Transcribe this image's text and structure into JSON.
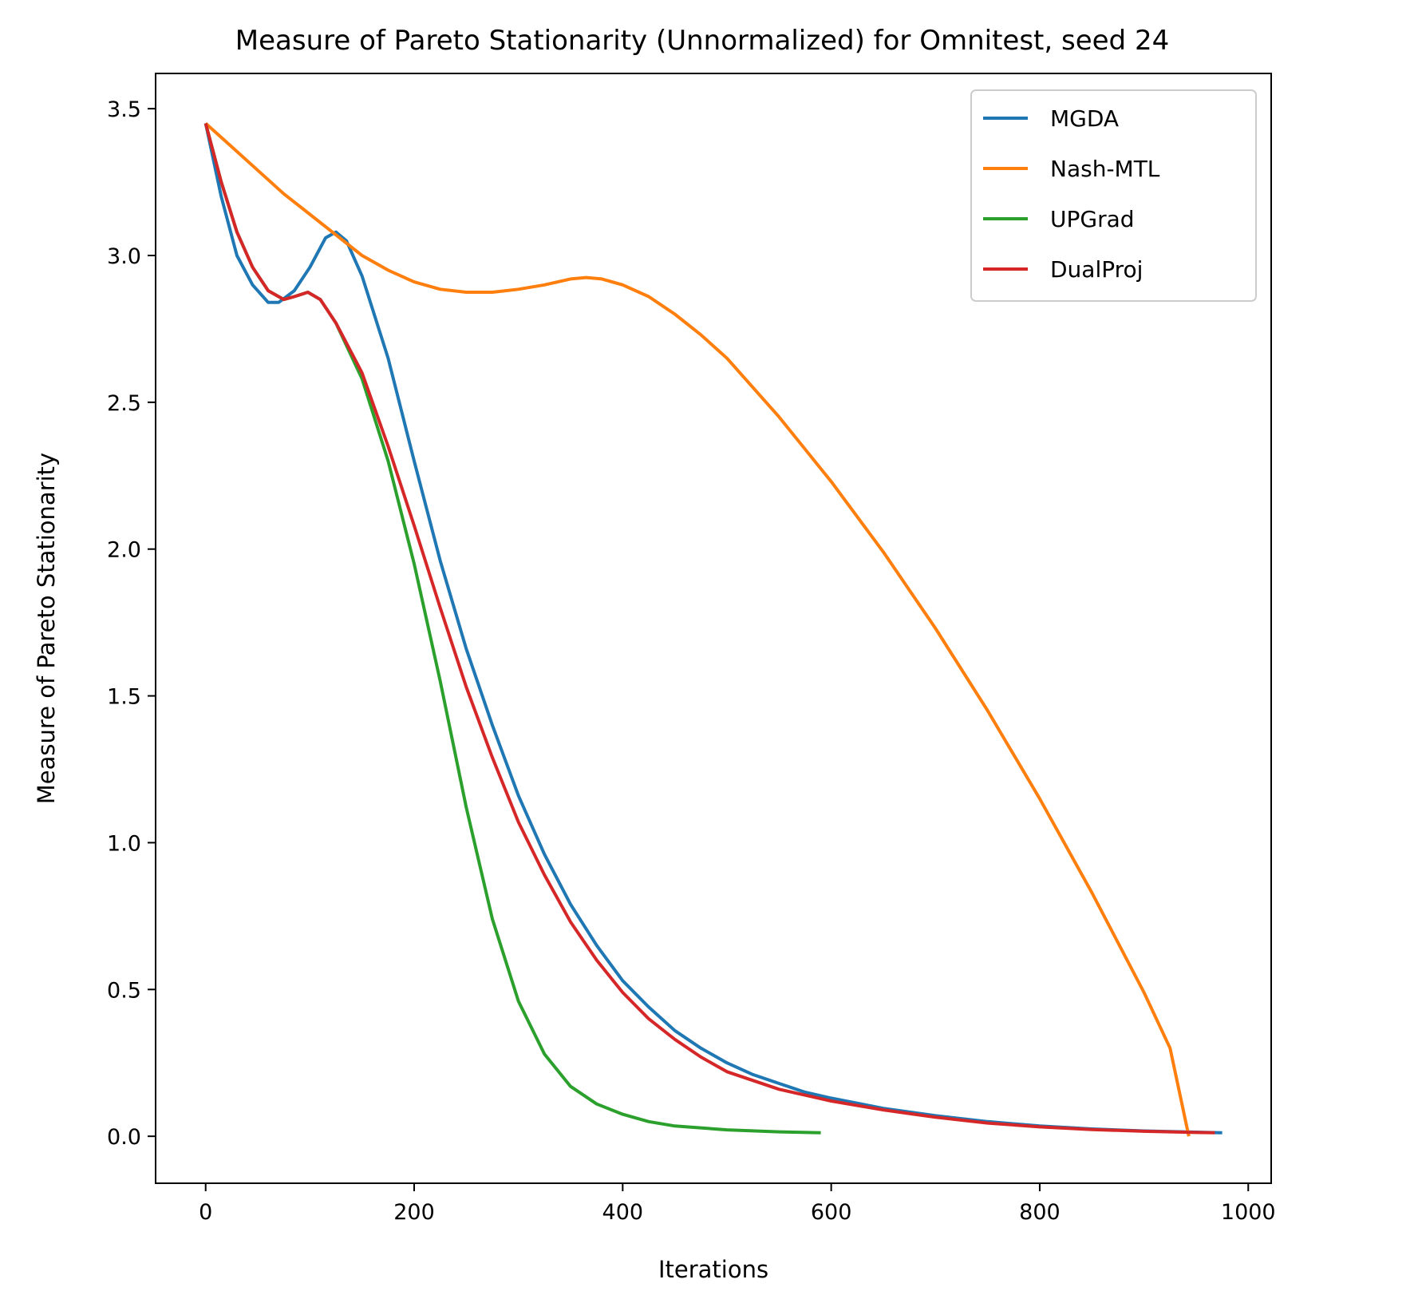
{
  "chart_data": {
    "type": "line",
    "title": "Measure of Pareto Stationarity (Unnormalized) for Omnitest, seed 24",
    "xlabel": "Iterations",
    "ylabel": "Measure of Pareto Stationarity",
    "xlim": [
      -48,
      1022
    ],
    "ylim": [
      -0.16,
      3.62
    ],
    "xticks": [
      0,
      200,
      400,
      600,
      800,
      1000
    ],
    "xtick_labels": [
      "0",
      "200",
      "400",
      "600",
      "800",
      "1000"
    ],
    "yticks": [
      0.0,
      0.5,
      1.0,
      1.5,
      2.0,
      2.5,
      3.0,
      3.5
    ],
    "ytick_labels": [
      "0.0",
      "0.5",
      "1.0",
      "1.5",
      "2.0",
      "2.5",
      "3.0",
      "3.5"
    ],
    "grid": false,
    "legend_position": "top-right",
    "series": [
      {
        "name": "MGDA",
        "color": "#1f77b4",
        "points": [
          [
            0,
            3.45
          ],
          [
            15,
            3.2
          ],
          [
            30,
            3.0
          ],
          [
            45,
            2.9
          ],
          [
            60,
            2.84
          ],
          [
            70,
            2.84
          ],
          [
            85,
            2.88
          ],
          [
            100,
            2.96
          ],
          [
            115,
            3.06
          ],
          [
            125,
            3.08
          ],
          [
            135,
            3.05
          ],
          [
            150,
            2.93
          ],
          [
            175,
            2.65
          ],
          [
            200,
            2.3
          ],
          [
            225,
            1.96
          ],
          [
            250,
            1.66
          ],
          [
            275,
            1.4
          ],
          [
            300,
            1.16
          ],
          [
            325,
            0.96
          ],
          [
            350,
            0.79
          ],
          [
            375,
            0.65
          ],
          [
            400,
            0.53
          ],
          [
            425,
            0.44
          ],
          [
            450,
            0.36
          ],
          [
            475,
            0.3
          ],
          [
            500,
            0.25
          ],
          [
            525,
            0.21
          ],
          [
            550,
            0.18
          ],
          [
            575,
            0.15
          ],
          [
            600,
            0.13
          ],
          [
            650,
            0.095
          ],
          [
            700,
            0.07
          ],
          [
            750,
            0.05
          ],
          [
            800,
            0.035
          ],
          [
            850,
            0.025
          ],
          [
            900,
            0.018
          ],
          [
            950,
            0.014
          ],
          [
            975,
            0.012
          ]
        ]
      },
      {
        "name": "Nash-MTL",
        "color": "#ff7f0e",
        "points": [
          [
            0,
            3.45
          ],
          [
            25,
            3.37
          ],
          [
            50,
            3.29
          ],
          [
            75,
            3.21
          ],
          [
            100,
            3.14
          ],
          [
            125,
            3.07
          ],
          [
            150,
            3.0
          ],
          [
            175,
            2.95
          ],
          [
            200,
            2.91
          ],
          [
            225,
            2.885
          ],
          [
            250,
            2.875
          ],
          [
            275,
            2.875
          ],
          [
            300,
            2.885
          ],
          [
            325,
            2.9
          ],
          [
            350,
            2.92
          ],
          [
            365,
            2.925
          ],
          [
            380,
            2.92
          ],
          [
            400,
            2.9
          ],
          [
            425,
            2.86
          ],
          [
            450,
            2.8
          ],
          [
            475,
            2.73
          ],
          [
            500,
            2.65
          ],
          [
            550,
            2.45
          ],
          [
            600,
            2.23
          ],
          [
            650,
            1.99
          ],
          [
            700,
            1.73
          ],
          [
            750,
            1.45
          ],
          [
            800,
            1.15
          ],
          [
            850,
            0.83
          ],
          [
            900,
            0.49
          ],
          [
            925,
            0.3
          ],
          [
            943,
            0.0
          ]
        ]
      },
      {
        "name": "UPGrad",
        "color": "#2ca02c",
        "points": [
          [
            0,
            3.45
          ],
          [
            15,
            3.25
          ],
          [
            30,
            3.08
          ],
          [
            45,
            2.96
          ],
          [
            60,
            2.88
          ],
          [
            75,
            2.85
          ],
          [
            85,
            2.86
          ],
          [
            98,
            2.875
          ],
          [
            110,
            2.85
          ],
          [
            125,
            2.77
          ],
          [
            150,
            2.58
          ],
          [
            175,
            2.3
          ],
          [
            200,
            1.95
          ],
          [
            225,
            1.55
          ],
          [
            250,
            1.12
          ],
          [
            275,
            0.74
          ],
          [
            300,
            0.46
          ],
          [
            325,
            0.28
          ],
          [
            350,
            0.17
          ],
          [
            375,
            0.11
          ],
          [
            400,
            0.075
          ],
          [
            425,
            0.05
          ],
          [
            450,
            0.035
          ],
          [
            500,
            0.022
          ],
          [
            550,
            0.015
          ],
          [
            590,
            0.012
          ]
        ]
      },
      {
        "name": "DualProj",
        "color": "#d62728",
        "points": [
          [
            0,
            3.45
          ],
          [
            15,
            3.25
          ],
          [
            30,
            3.08
          ],
          [
            45,
            2.96
          ],
          [
            60,
            2.88
          ],
          [
            75,
            2.85
          ],
          [
            85,
            2.86
          ],
          [
            98,
            2.875
          ],
          [
            110,
            2.85
          ],
          [
            125,
            2.77
          ],
          [
            150,
            2.6
          ],
          [
            175,
            2.35
          ],
          [
            200,
            2.08
          ],
          [
            225,
            1.8
          ],
          [
            250,
            1.53
          ],
          [
            275,
            1.29
          ],
          [
            300,
            1.07
          ],
          [
            325,
            0.89
          ],
          [
            350,
            0.73
          ],
          [
            375,
            0.6
          ],
          [
            400,
            0.49
          ],
          [
            425,
            0.4
          ],
          [
            450,
            0.33
          ],
          [
            475,
            0.27
          ],
          [
            500,
            0.22
          ],
          [
            550,
            0.16
          ],
          [
            600,
            0.12
          ],
          [
            650,
            0.09
          ],
          [
            700,
            0.065
          ],
          [
            750,
            0.045
          ],
          [
            800,
            0.032
          ],
          [
            850,
            0.023
          ],
          [
            900,
            0.017
          ],
          [
            950,
            0.013
          ],
          [
            968,
            0.012
          ]
        ]
      }
    ]
  }
}
